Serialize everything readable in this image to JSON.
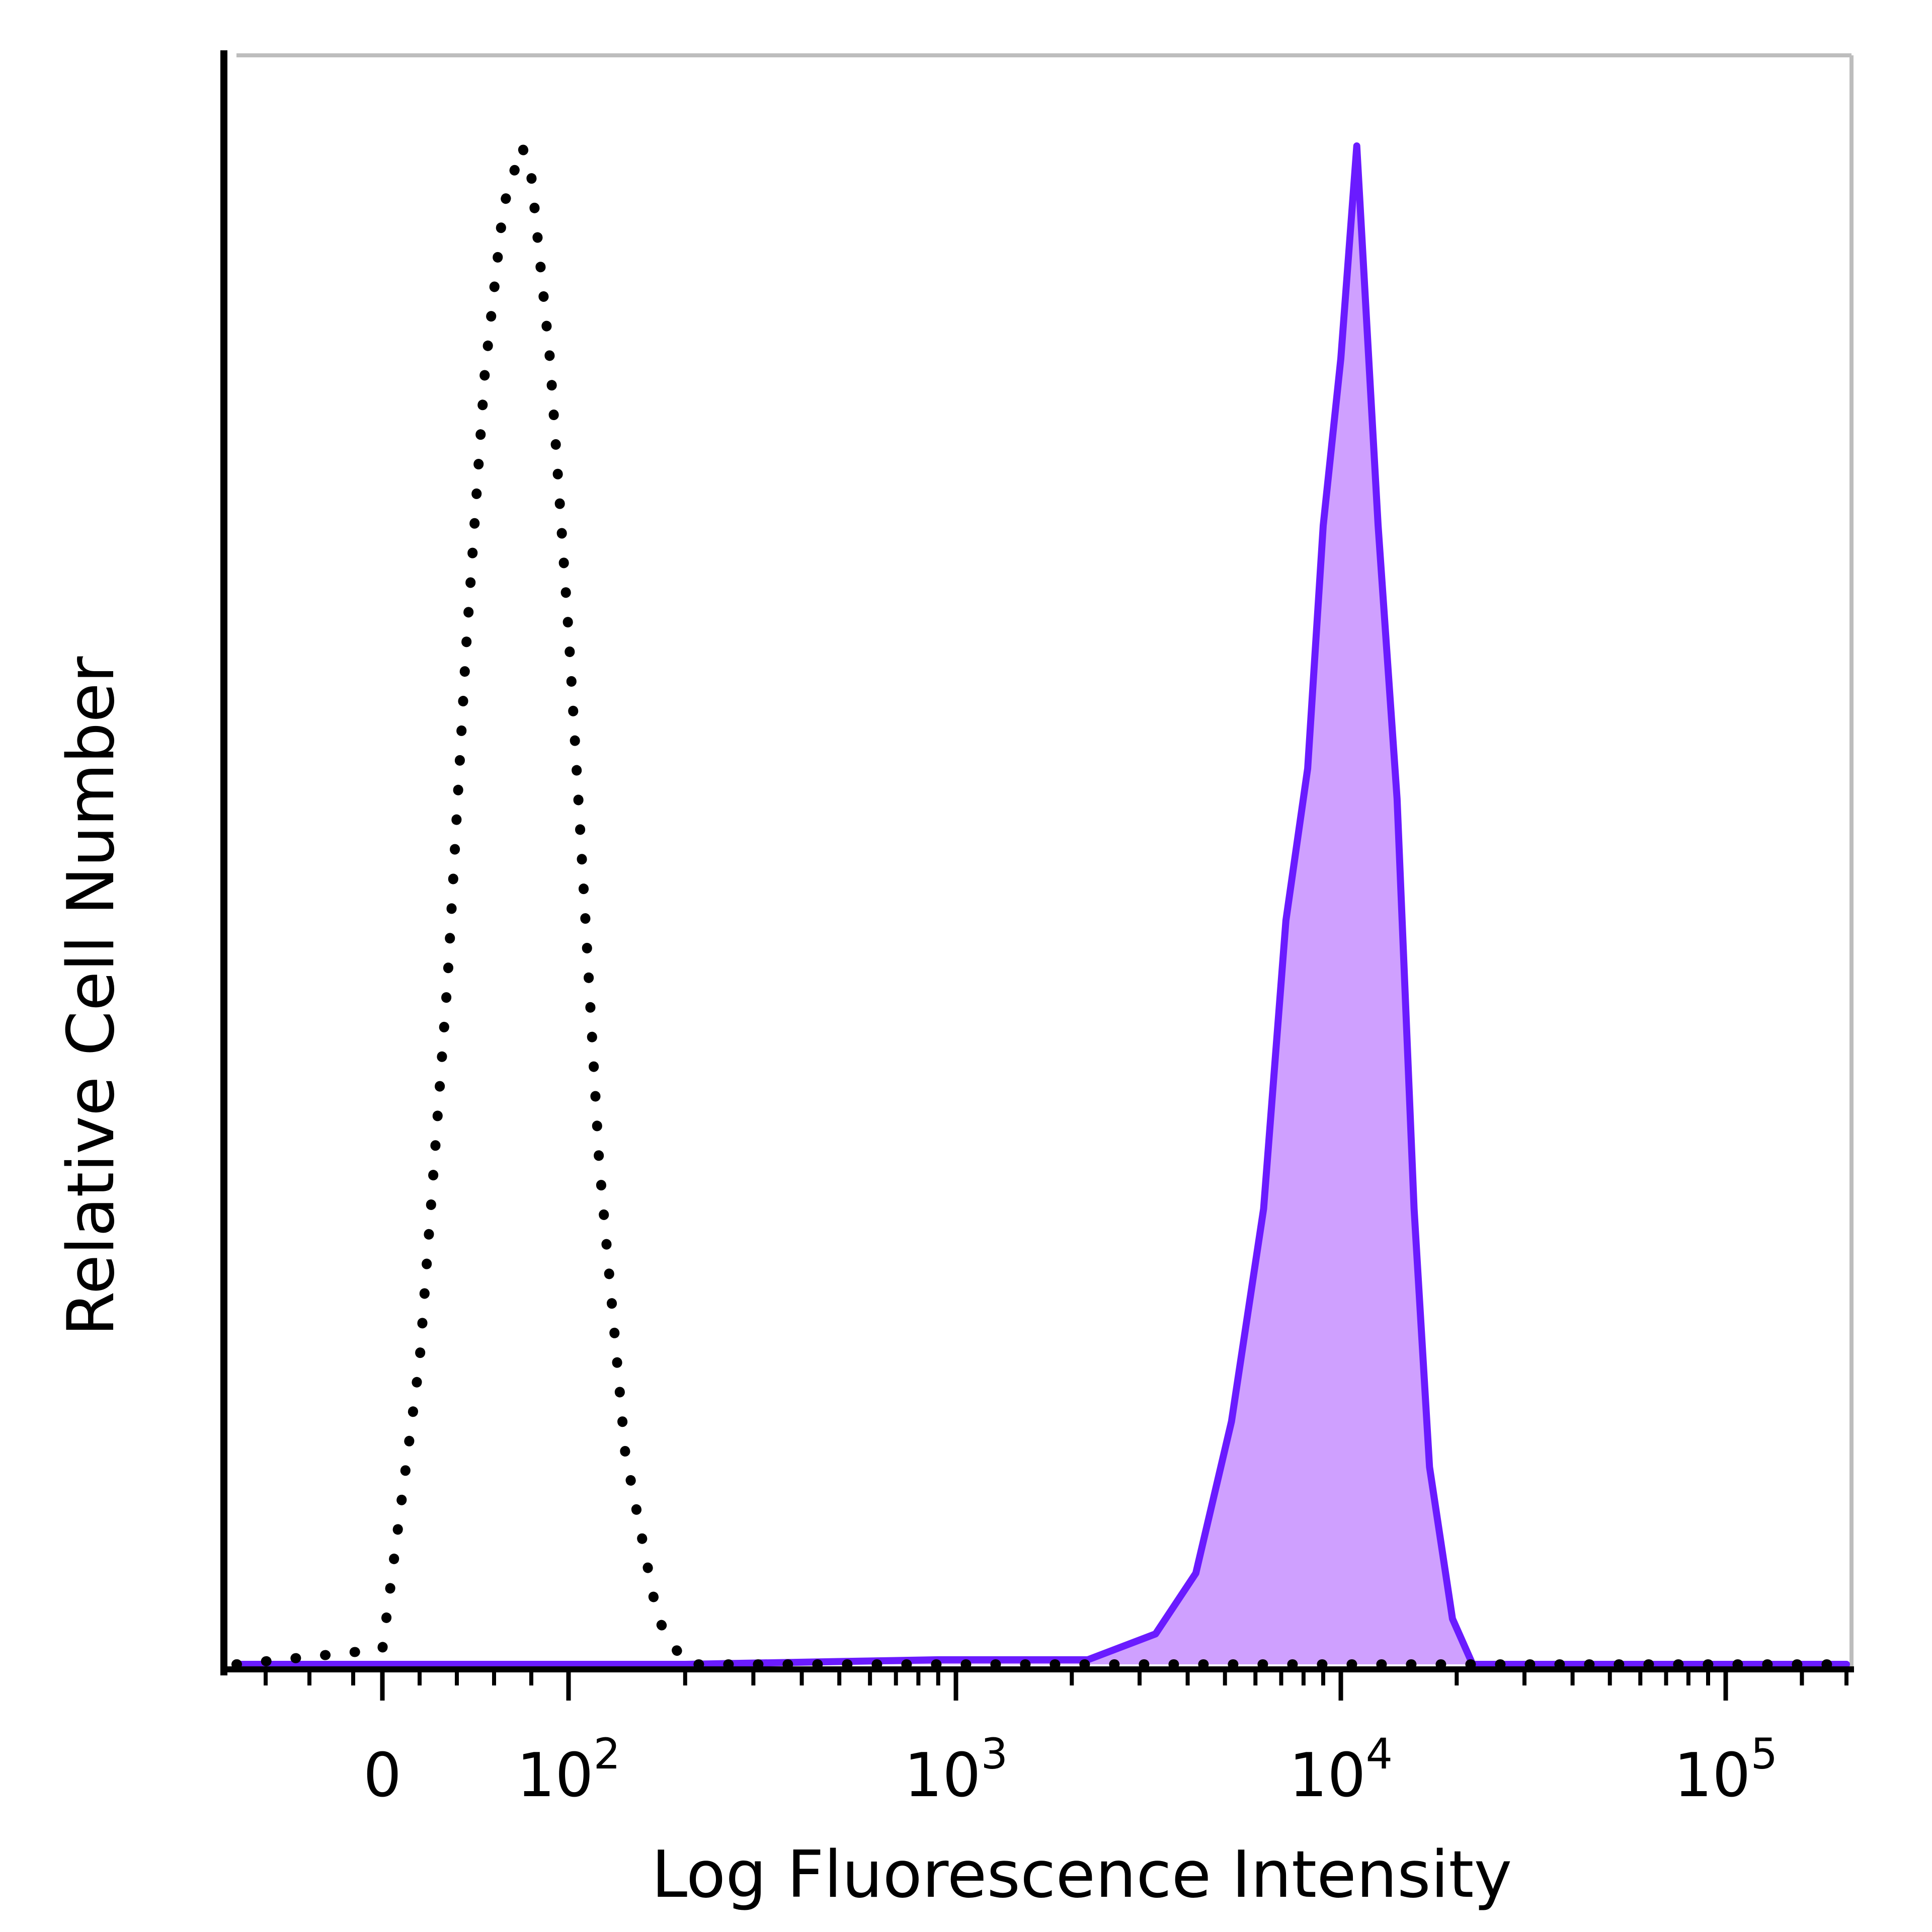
{
  "chart_data": {
    "type": "area",
    "title": "",
    "xlabel": "Log Fluorescence Intensity",
    "ylabel": "Relative Cell Number",
    "x_scale": "biexponential",
    "xlim": [
      -50,
      300000
    ],
    "ylim": [
      0,
      100
    ],
    "grid": false,
    "legend": "none",
    "x_ticks": [
      {
        "value": 0,
        "base": "0",
        "exp": ""
      },
      {
        "value": 100,
        "base": "10",
        "exp": "2"
      },
      {
        "value": 1000,
        "base": "10",
        "exp": "3"
      },
      {
        "value": 10000,
        "base": "10",
        "exp": "4"
      },
      {
        "value": 100000,
        "base": "10",
        "exp": "5"
      }
    ],
    "series": [
      {
        "style": "dotted",
        "color": "#000000",
        "fill": "none",
        "x": [
          -50,
          0,
          20,
          35,
          45,
          55,
          65,
          75,
          80,
          90,
          100,
          110,
          120,
          140,
          170,
          200,
          300000
        ],
        "y": [
          0,
          1,
          20,
          45,
          67,
          85,
          96,
          100,
          98,
          86,
          68,
          50,
          33,
          14,
          3,
          0,
          0
        ]
      },
      {
        "style": "solid",
        "color": "#6a1bff",
        "fill": "#cfa0ff",
        "x": [
          -50,
          200,
          900,
          2200,
          3300,
          4200,
          5200,
          6300,
          7200,
          8200,
          9000,
          10000,
          11000,
          12500,
          14000,
          15500,
          17000,
          19500,
          22000,
          300000
        ],
        "y": [
          0,
          0,
          0.3,
          0.3,
          2,
          6,
          16,
          30,
          49,
          59,
          75,
          86,
          100,
          75,
          57,
          30,
          13,
          3,
          0,
          0
        ]
      }
    ]
  }
}
